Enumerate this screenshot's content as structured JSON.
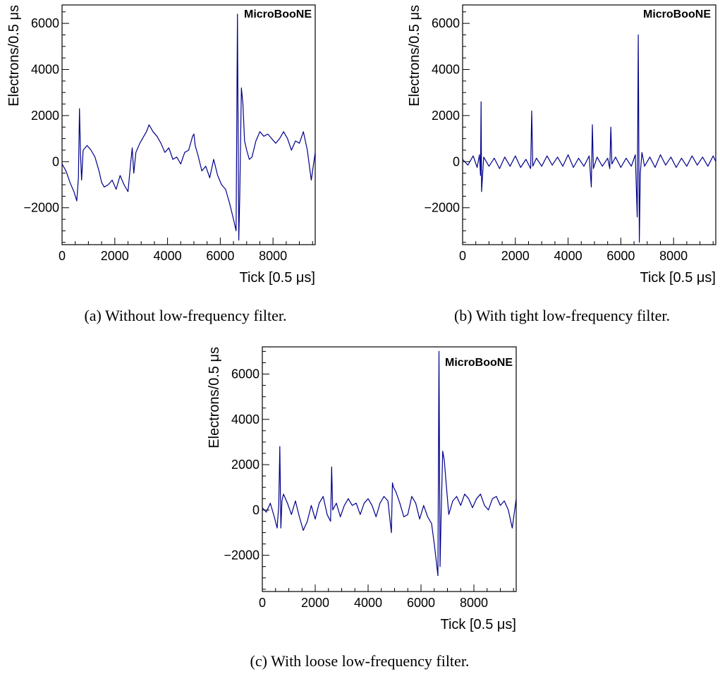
{
  "chart_data": [
    {
      "type": "line",
      "label": "MicroBooNE",
      "caption": "(a) Without low-frequency filter.",
      "xlabel": "Tick [0.5 μs]",
      "ylabel": "Electrons/0.5 μs",
      "xlim": [
        0,
        9600
      ],
      "ylim": [
        -3600,
        6800
      ],
      "xticks": [
        0,
        2000,
        4000,
        6000,
        8000
      ],
      "yticks": [
        -2000,
        0,
        2000,
        4000,
        6000
      ],
      "x_tick_labels": [
        "0",
        "2000",
        "4000",
        "6000",
        "8000"
      ],
      "y_tick_labels": [
        "−2000",
        "0",
        "2000",
        "4000",
        "6000"
      ],
      "grid": false,
      "series": [
        {
          "color": "#00008b",
          "x": [
            0,
            150,
            300,
            450,
            560,
            620,
            660,
            700,
            740,
            800,
            950,
            1100,
            1250,
            1400,
            1500,
            1600,
            1750,
            1900,
            2050,
            2200,
            2350,
            2500,
            2600,
            2660,
            2720,
            2800,
            2950,
            3100,
            3200,
            3300,
            3450,
            3600,
            3750,
            3900,
            4050,
            4200,
            4350,
            4500,
            4650,
            4800,
            4950,
            5000,
            5050,
            5150,
            5300,
            5450,
            5600,
            5750,
            5900,
            6050,
            6200,
            6350,
            6500,
            6600,
            6650,
            6700,
            6740,
            6800,
            6860,
            6920,
            7000,
            7100,
            7200,
            7350,
            7500,
            7650,
            7800,
            7950,
            8100,
            8250,
            8400,
            8550,
            8700,
            8850,
            9000,
            9150,
            9300,
            9450,
            9600
          ],
          "y": [
            -100,
            -400,
            -900,
            -1300,
            -1700,
            -700,
            2300,
            300,
            -800,
            500,
            700,
            500,
            200,
            -400,
            -900,
            -1100,
            -1000,
            -800,
            -1200,
            -600,
            -1000,
            -1300,
            -100,
            600,
            -500,
            400,
            800,
            1100,
            1300,
            1600,
            1300,
            1100,
            800,
            400,
            600,
            100,
            200,
            -100,
            400,
            500,
            1100,
            1200,
            700,
            300,
            -400,
            -200,
            -700,
            100,
            -600,
            -1000,
            -1200,
            -1800,
            -2500,
            -3000,
            6400,
            -3400,
            -1500,
            3200,
            2500,
            900,
            500,
            100,
            200,
            900,
            1300,
            1100,
            1200,
            1000,
            800,
            1000,
            1300,
            1000,
            500,
            900,
            800,
            1300,
            500,
            -800,
            400
          ]
        }
      ]
    },
    {
      "type": "line",
      "label": "MicroBooNE",
      "caption": "(b) With tight low-frequency filter.",
      "xlabel": "Tick [0.5 μs]",
      "ylabel": "Electrons/0.5 μs",
      "xlim": [
        0,
        9600
      ],
      "ylim": [
        -3600,
        6800
      ],
      "xticks": [
        0,
        2000,
        4000,
        6000,
        8000
      ],
      "yticks": [
        -2000,
        0,
        2000,
        4000,
        6000
      ],
      "x_tick_labels": [
        "0",
        "2000",
        "4000",
        "6000",
        "8000"
      ],
      "y_tick_labels": [
        "−2000",
        "0",
        "2000",
        "4000",
        "6000"
      ],
      "grid": false,
      "series": [
        {
          "color": "#00008b",
          "x": [
            0,
            200,
            400,
            550,
            640,
            680,
            700,
            720,
            800,
            1000,
            1200,
            1400,
            1600,
            1800,
            2000,
            2200,
            2400,
            2580,
            2620,
            2660,
            2800,
            3000,
            3200,
            3400,
            3600,
            3800,
            4000,
            4200,
            4400,
            4600,
            4800,
            4880,
            4920,
            4960,
            5100,
            5300,
            5500,
            5580,
            5620,
            5660,
            5800,
            6000,
            6200,
            6400,
            6550,
            6620,
            6660,
            6700,
            6740,
            6800,
            6900,
            7100,
            7300,
            7500,
            7700,
            7900,
            8100,
            8300,
            8500,
            8700,
            8900,
            9100,
            9300,
            9500,
            9600
          ],
          "y": [
            100,
            -150,
            250,
            -250,
            300,
            -600,
            2600,
            -1300,
            200,
            -200,
            150,
            -300,
            200,
            -200,
            250,
            -250,
            100,
            -300,
            2200,
            -200,
            150,
            -200,
            250,
            -150,
            200,
            -200,
            300,
            -250,
            150,
            -200,
            250,
            -1100,
            1600,
            -300,
            200,
            -200,
            150,
            -300,
            1500,
            -100,
            200,
            -250,
            150,
            -200,
            300,
            -2400,
            5500,
            -3500,
            -500,
            400,
            -200,
            200,
            -250,
            300,
            -150,
            200,
            -250,
            150,
            -200,
            250,
            -150,
            200,
            -200,
            250,
            0
          ]
        }
      ]
    },
    {
      "type": "line",
      "label": "MicroBooNE",
      "caption": "(c) With loose low-frequency filter.",
      "xlabel": "Tick [0.5 μs]",
      "ylabel": "Electrons/0.5 μs",
      "xlim": [
        0,
        9600
      ],
      "ylim": [
        -3600,
        7200
      ],
      "xticks": [
        0,
        2000,
        4000,
        6000,
        8000
      ],
      "yticks": [
        -2000,
        0,
        2000,
        4000,
        6000
      ],
      "x_tick_labels": [
        "0",
        "2000",
        "4000",
        "6000",
        "8000"
      ],
      "y_tick_labels": [
        "−2000",
        "0",
        "2000",
        "4000",
        "6000"
      ],
      "grid": false,
      "series": [
        {
          "color": "#00008b",
          "x": [
            0,
            150,
            300,
            450,
            560,
            620,
            660,
            700,
            740,
            800,
            950,
            1100,
            1250,
            1400,
            1550,
            1700,
            1850,
            2000,
            2150,
            2300,
            2450,
            2580,
            2620,
            2660,
            2800,
            2950,
            3100,
            3250,
            3400,
            3550,
            3700,
            3850,
            4000,
            4150,
            4300,
            4450,
            4600,
            4750,
            4880,
            4920,
            4960,
            5050,
            5200,
            5350,
            5500,
            5650,
            5800,
            5950,
            6100,
            6250,
            6400,
            6500,
            6580,
            6640,
            6680,
            6720,
            6760,
            6820,
            6880,
            6950,
            7050,
            7200,
            7350,
            7500,
            7650,
            7800,
            7950,
            8100,
            8250,
            8400,
            8550,
            8700,
            8850,
            9000,
            9150,
            9300,
            9450,
            9600
          ],
          "y": [
            100,
            -100,
            300,
            -300,
            -800,
            200,
            2800,
            -800,
            400,
            700,
            300,
            -200,
            400,
            -300,
            -900,
            -500,
            200,
            -400,
            300,
            600,
            -200,
            -500,
            1900,
            0,
            300,
            -300,
            200,
            500,
            200,
            300,
            -200,
            300,
            500,
            200,
            -300,
            300,
            600,
            400,
            -1000,
            1200,
            1000,
            800,
            300,
            -300,
            -200,
            600,
            300,
            -400,
            200,
            -300,
            -600,
            -1500,
            -2300,
            -2900,
            7000,
            -2500,
            -300,
            2600,
            2200,
            1200,
            -200,
            400,
            600,
            200,
            700,
            500,
            100,
            500,
            700,
            200,
            0,
            500,
            600,
            200,
            400,
            0,
            -800,
            500
          ]
        }
      ]
    }
  ]
}
